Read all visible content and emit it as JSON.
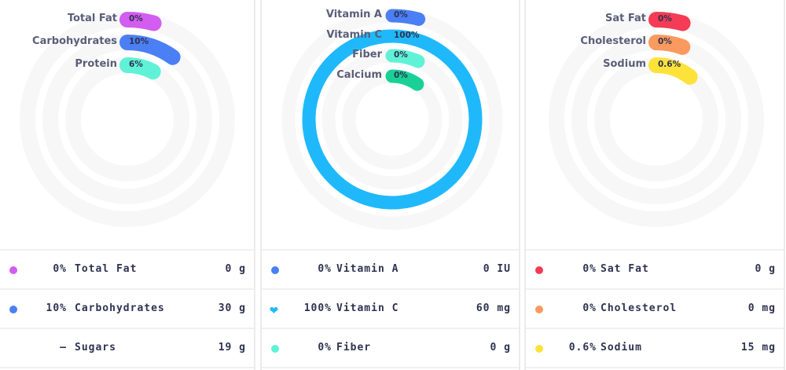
{
  "panels": [
    {
      "rings": [
        {
          "name": "Total Fat",
          "pct_label": "0%",
          "value": 0,
          "color": "#d35df0"
        },
        {
          "name": "Carbohydrates",
          "pct_label": "10%",
          "value": 10,
          "color": "#4b7ff5"
        },
        {
          "name": "Protein",
          "pct_label": "6%",
          "value": 6,
          "color": "#5ff2d6"
        }
      ],
      "rows": [
        {
          "pct": "0%",
          "name": "Total Fat",
          "amount": "0 g",
          "color": "#d35df0",
          "icon": "dot"
        },
        {
          "pct": "10%",
          "name": "Carbohydrates",
          "amount": "30 g",
          "color": "#4b7ff5",
          "icon": "dot"
        },
        {
          "pct": "—",
          "name": "Sugars",
          "amount": "19 g",
          "color": "",
          "icon": "none"
        }
      ]
    },
    {
      "rings": [
        {
          "name": "Vitamin A",
          "pct_label": "0%",
          "value": 0,
          "color": "#4b7ff5"
        },
        {
          "name": "Vitamin C",
          "pct_label": "100%",
          "value": 100,
          "color": "#1fb9fb"
        },
        {
          "name": "Fiber",
          "pct_label": "0%",
          "value": 0,
          "color": "#5ff2d6"
        },
        {
          "name": "Calcium",
          "pct_label": "0%",
          "value": 0,
          "color": "#19d196"
        }
      ],
      "rows": [
        {
          "pct": "0%",
          "name": "Vitamin A",
          "amount": "0 IU",
          "color": "#4b7ff5",
          "icon": "dot"
        },
        {
          "pct": "100%",
          "name": "Vitamin C",
          "amount": "60 mg",
          "color": "#1fb9fb",
          "icon": "heart"
        },
        {
          "pct": "0%",
          "name": "Fiber",
          "amount": "0 g",
          "color": "#5ff2d6",
          "icon": "dot"
        }
      ]
    },
    {
      "rings": [
        {
          "name": "Sat Fat",
          "pct_label": "0%",
          "value": 0,
          "color": "#f53b55"
        },
        {
          "name": "Cholesterol",
          "pct_label": "0%",
          "value": 0,
          "color": "#fb9a5e"
        },
        {
          "name": "Sodium",
          "pct_label": "0.6%",
          "value": 0.6,
          "color": "#fde23a"
        }
      ],
      "rows": [
        {
          "pct": "0%",
          "name": "Sat Fat",
          "amount": "0 g",
          "color": "#f53b55",
          "icon": "dot"
        },
        {
          "pct": "0%",
          "name": "Cholesterol",
          "amount": "0 mg",
          "color": "#fb9a5e",
          "icon": "dot"
        },
        {
          "pct": "0.6%",
          "name": "Sodium",
          "amount": "15 mg",
          "color": "#fde23a",
          "icon": "dot"
        }
      ]
    }
  ]
}
